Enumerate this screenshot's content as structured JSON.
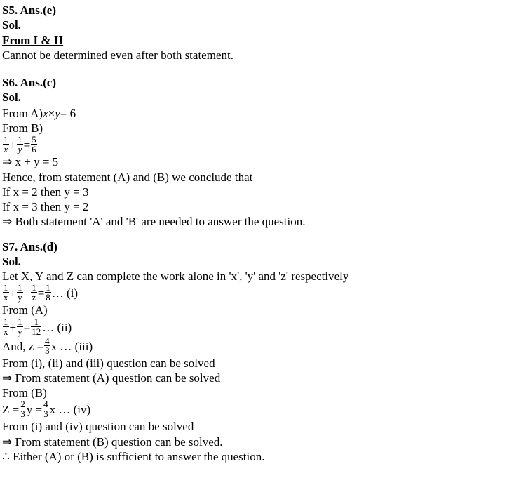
{
  "s5": {
    "header": "S5. Ans.(e)",
    "sol": "Sol.",
    "from_heading": "From I & II",
    "line1": "Cannot be determined even after both statement."
  },
  "s6": {
    "header": "S6. Ans.(c)",
    "sol": "Sol.",
    "l1a": "From A) ",
    "l1b_x": "x",
    "l1b_times": " × ",
    "l1b_y": "y",
    "l1c": " = 6",
    "l2": "From B)",
    "frac1_num": "1",
    "frac1_den": "x",
    "plus1": " + ",
    "frac2_num": "1",
    "frac2_den": "y",
    "eq": " = ",
    "frac3_num": "5",
    "frac3_den": "6",
    "l4": "⇒ x + y = 5",
    "l5": "Hence, from statement (A) and (B) we conclude that",
    "l6": "If x = 2 then y = 3",
    "l7": "If x = 3 then y = 2",
    "l8": "⇒ Both statement 'A' and 'B' are needed to answer the question."
  },
  "s7": {
    "header": "S7. Ans.(d)",
    "sol": "Sol.",
    "l1": "Let X, Y and Z can complete the work alone in 'x', 'y' and 'z' respectively",
    "eq1_f1n": "1",
    "eq1_f1d": "x",
    "eq1_plus1": " + ",
    "eq1_f2n": "1",
    "eq1_f2d": "y",
    "eq1_plus2": " + ",
    "eq1_f3n": "1",
    "eq1_f3d": "z",
    "eq1_eq": " = ",
    "eq1_f4n": "1",
    "eq1_f4d": "8",
    "eq1_tag": "   … (i)",
    "l3": "From (A)",
    "eq2_f1n": "1",
    "eq2_f1d": "x",
    "eq2_plus1": " + ",
    "eq2_f2n": "1",
    "eq2_f2d": "y",
    "eq2_eq": " = ",
    "eq2_f3n": "1",
    "eq2_f3d": "12",
    "eq2_tag": "      … (ii)",
    "l5a": " And, z = ",
    "eq3_fn": "4",
    "eq3_fd": "3",
    "l5b": " x    … (iii)",
    "l6": "From (i), (ii) and (iii) question can be solved",
    "l7": "⇒ From statement (A) question can be solved",
    "l8": "From (B)",
    "l9a": " Z = ",
    "eq4_fn": "2",
    "eq4_fd": "3",
    "l9b": " y = ",
    "eq5_fn": "4",
    "eq5_fd": "3",
    "l9c": " x  … (iv)",
    "l10": "From (i) and (iv) question can be solved",
    "l11": "⇒ From statement (B) question can be solved.",
    "l12": "∴ Either (A) or (B) is sufficient to answer the question."
  }
}
